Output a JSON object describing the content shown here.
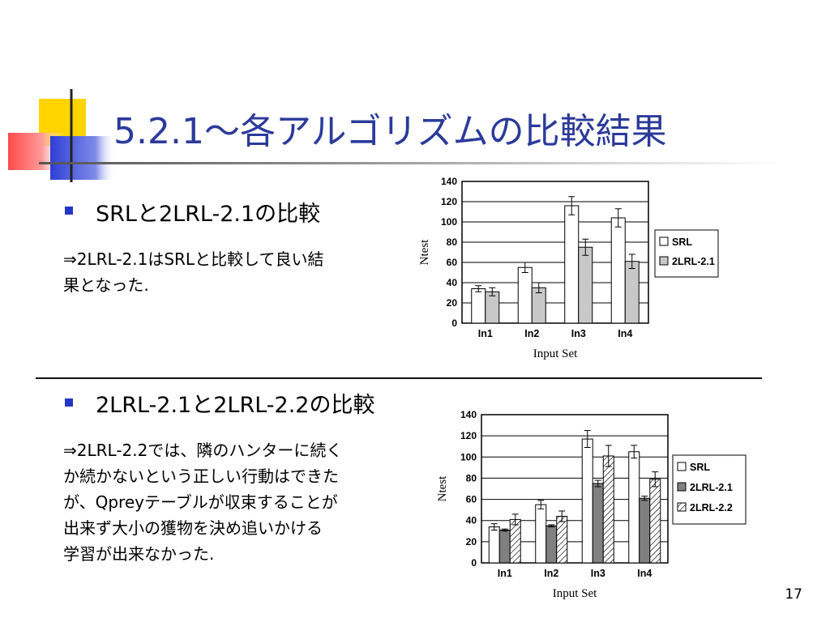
{
  "slide": {
    "title": "5.2.1～各アルゴリズムの比較結果",
    "page_number": "17"
  },
  "section1": {
    "heading": "SRLと2LRL-2.1の比較",
    "body": [
      "⇒2LRL-2.1はSRLと比較して良い結",
      "果となった."
    ]
  },
  "section2": {
    "heading": "2LRL-2.1と2LRL-2.2の比較",
    "body": [
      "⇒2LRL-2.2では、隣のハンターに続く",
      "か続かないという正しい行動はできた",
      "が、Qpreyテーブルが収束することが",
      "出来ず大小の獲物を決め追いかける",
      "学習が出来なかった."
    ]
  },
  "chart_data": [
    {
      "type": "bar",
      "categories": [
        "In1",
        "In2",
        "In3",
        "In4"
      ],
      "xlabel": "Input Set",
      "ylabel": "Ntest",
      "ylim": [
        0,
        140
      ],
      "yticks": [
        0,
        20,
        40,
        60,
        80,
        100,
        120,
        140
      ],
      "grid": true,
      "legend_position": "right",
      "series": [
        {
          "name": "SRL",
          "values": [
            34,
            55,
            116,
            104
          ],
          "errors": [
            3,
            5,
            9,
            9
          ],
          "color": "#ffffff",
          "pattern": "none"
        },
        {
          "name": "2LRL-2.1",
          "values": [
            31,
            35,
            75,
            61
          ],
          "errors": [
            4,
            5,
            8,
            7
          ],
          "color": "#c8c8c8",
          "pattern": "none"
        }
      ]
    },
    {
      "type": "bar",
      "categories": [
        "In1",
        "In2",
        "In3",
        "In4"
      ],
      "xlabel": "Input Set",
      "ylabel": "Ntest",
      "ylim": [
        0,
        140
      ],
      "yticks": [
        0,
        20,
        40,
        60,
        80,
        100,
        120,
        140
      ],
      "grid": true,
      "legend_position": "right",
      "series": [
        {
          "name": "SRL",
          "values": [
            34,
            55,
            117,
            105
          ],
          "errors": [
            3,
            4,
            8,
            6
          ],
          "color": "#ffffff",
          "pattern": "none"
        },
        {
          "name": "2LRL-2.1",
          "values": [
            31,
            35,
            75,
            61
          ],
          "errors": [
            1,
            1,
            3,
            2
          ],
          "color": "#808080",
          "pattern": "none"
        },
        {
          "name": "2LRL-2.2",
          "values": [
            41,
            44,
            101,
            79
          ],
          "errors": [
            5,
            5,
            10,
            7
          ],
          "color": "#ffffff",
          "pattern": "hatch"
        }
      ]
    }
  ]
}
